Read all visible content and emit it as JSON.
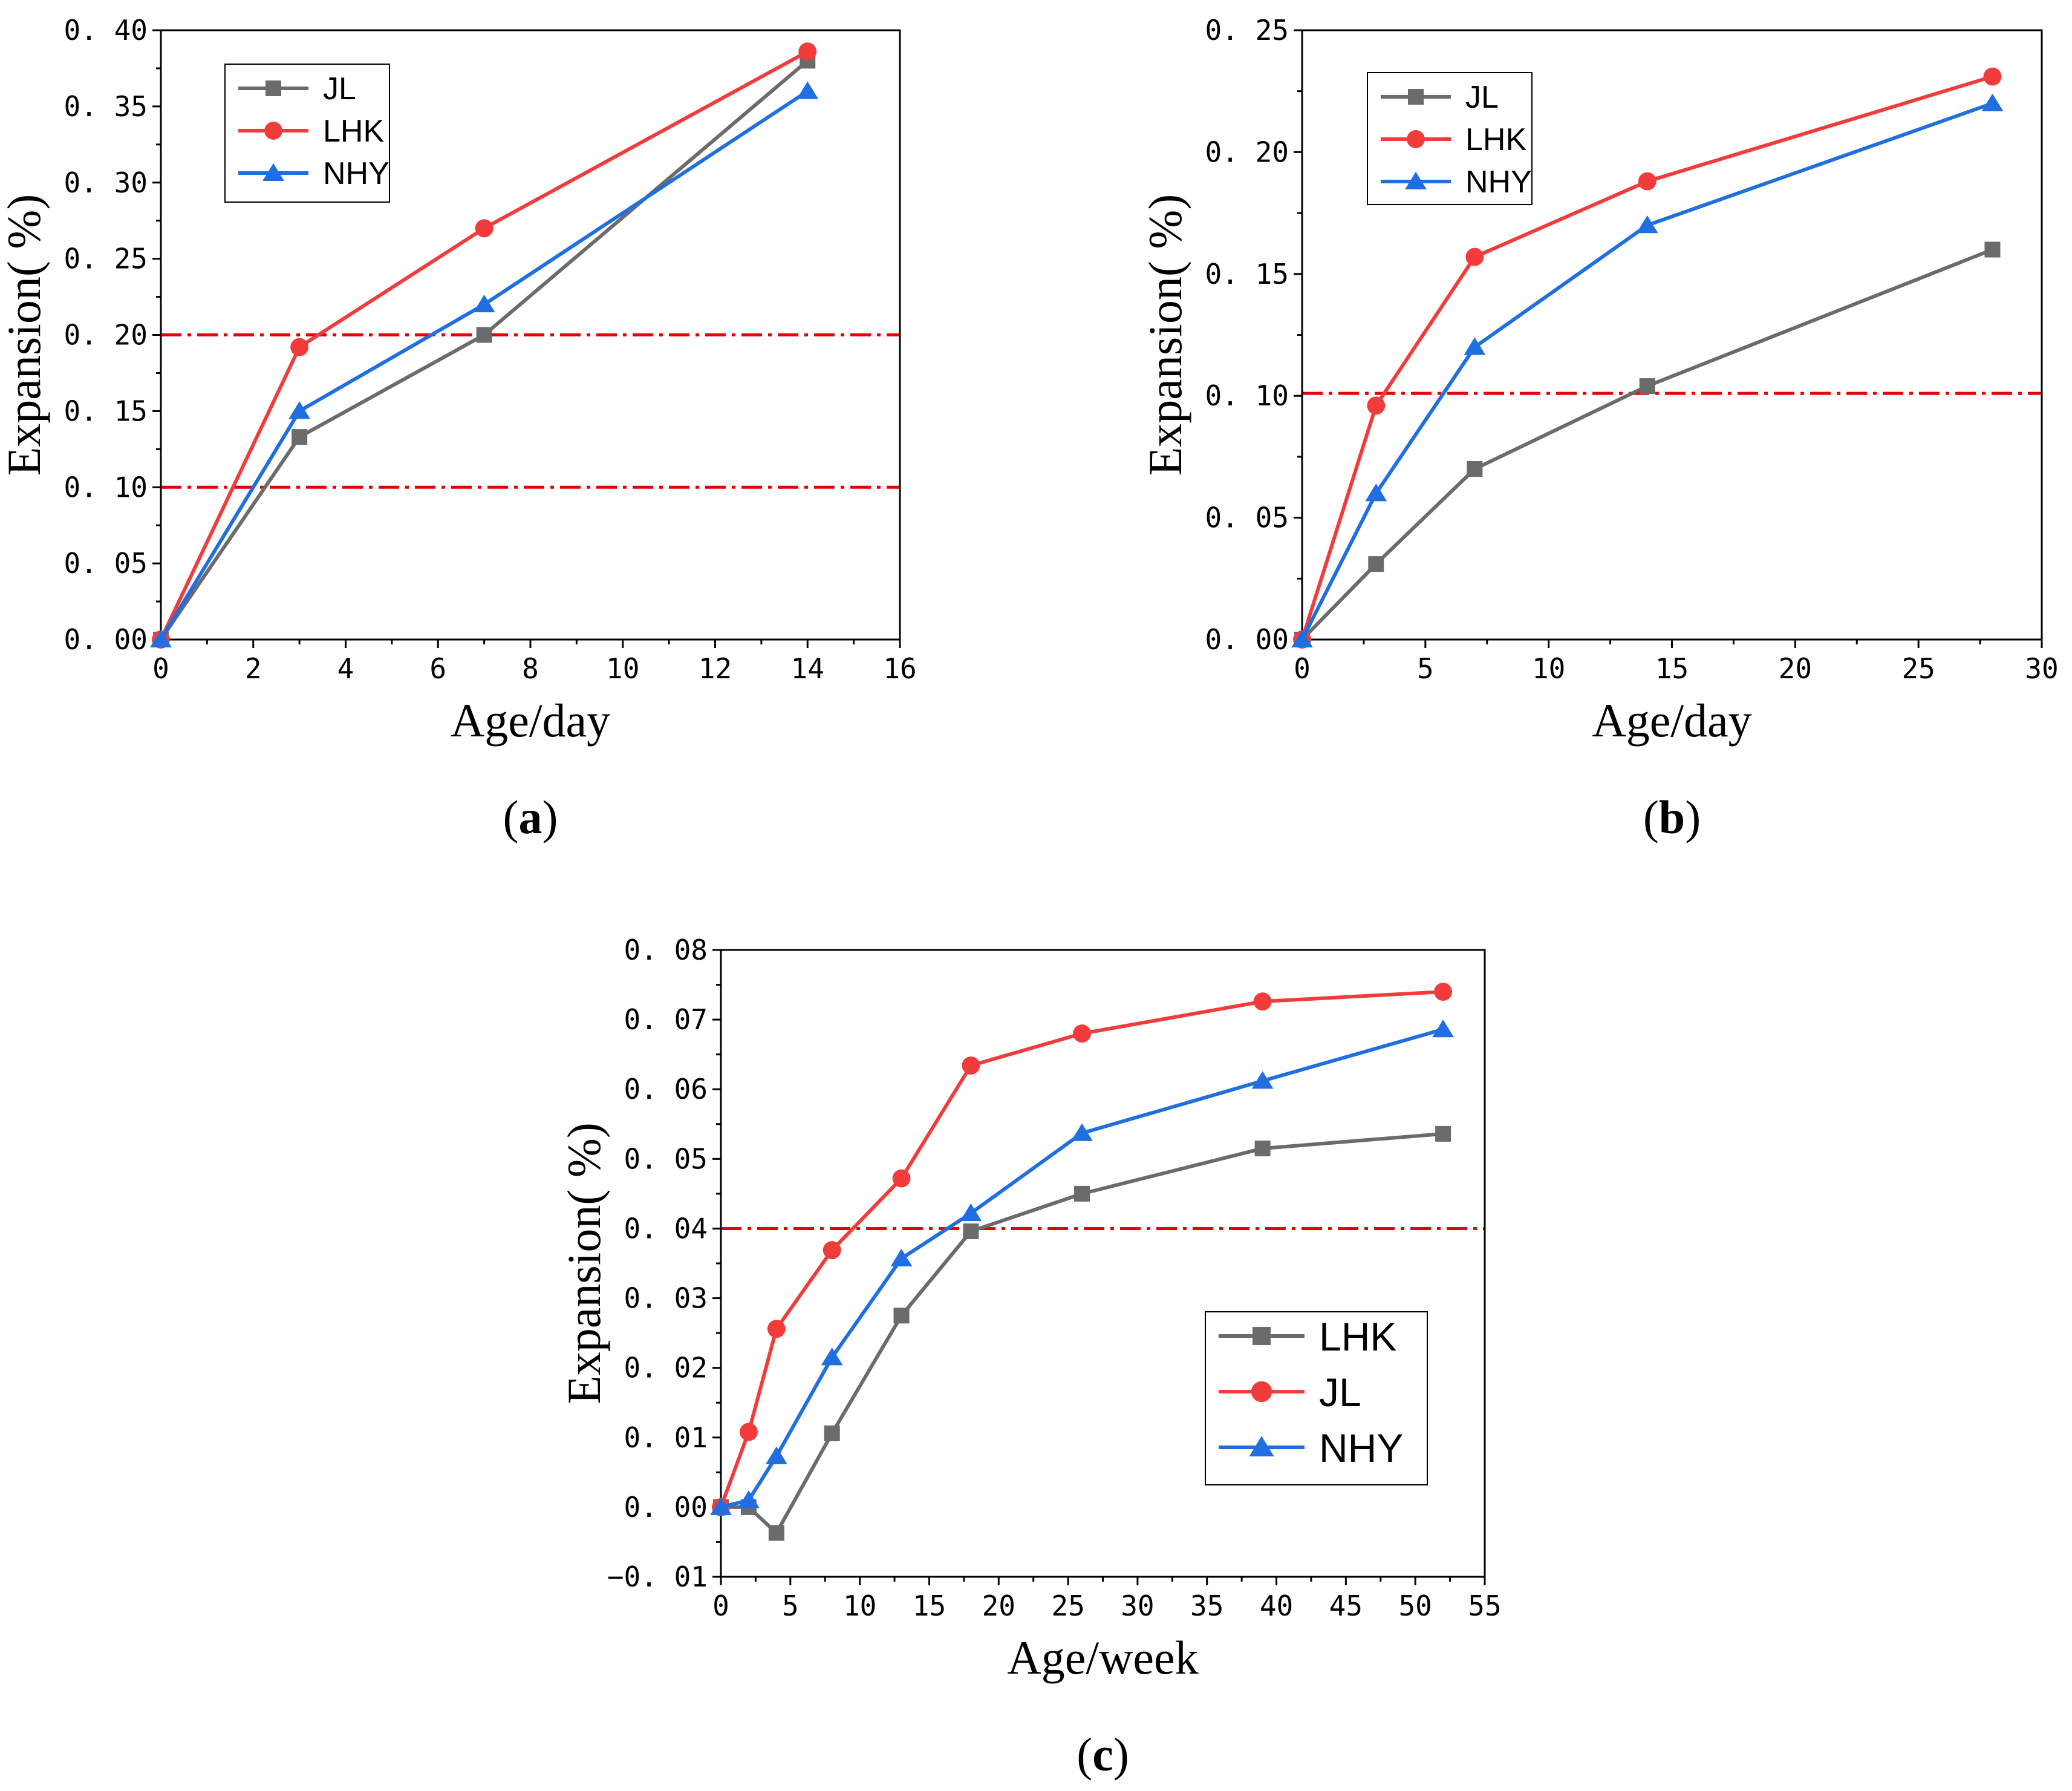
{
  "colors": {
    "gray": "#6b6b6b",
    "red": "#f23c3c",
    "blue": "#1f6fe0",
    "refline": "#e60000",
    "axis": "#000000"
  },
  "chart_data": [
    {
      "id": "a",
      "type": "line",
      "caption": "a",
      "xlabel": "Age/day",
      "ylabel": "Expansion(  %)",
      "xlim": [
        0,
        16
      ],
      "ylim": [
        0,
        0.4
      ],
      "xticks": [
        "0",
        "2",
        "4",
        "6",
        "8",
        "10",
        "12",
        "14",
        "16"
      ],
      "yticks": [
        "0. 00",
        "0. 05",
        "0. 10",
        "0. 15",
        "0. 20",
        "0. 25",
        "0. 30",
        "0. 35",
        "0. 40"
      ],
      "reference_lines": [
        0.1,
        0.2
      ],
      "legend_position": "top-left",
      "series": [
        {
          "name": "JL",
          "color": "#6b6b6b",
          "marker": "square",
          "x": [
            0,
            3,
            7,
            14
          ],
          "y": [
            0.0,
            0.133,
            0.2,
            0.38
          ]
        },
        {
          "name": "LHK",
          "color": "#f23c3c",
          "marker": "circle",
          "x": [
            0,
            3,
            7,
            14
          ],
          "y": [
            0.0,
            0.192,
            0.27,
            0.386
          ]
        },
        {
          "name": "NHY",
          "color": "#1f6fe0",
          "marker": "triangle",
          "x": [
            0,
            3,
            7,
            14
          ],
          "y": [
            0.0,
            0.15,
            0.22,
            0.36
          ]
        }
      ]
    },
    {
      "id": "b",
      "type": "line",
      "caption": "b",
      "xlabel": "Age/day",
      "ylabel": "Expansion(  %)",
      "xlim": [
        0,
        30
      ],
      "ylim": [
        0,
        0.25
      ],
      "xticks": [
        "0",
        "5",
        "10",
        "15",
        "20",
        "25",
        "30"
      ],
      "yticks": [
        "0. 00",
        "0. 05",
        "0. 10",
        "0. 15",
        "0. 20",
        "0. 25"
      ],
      "reference_lines": [
        0.101
      ],
      "legend_position": "top-left",
      "series": [
        {
          "name": "JL",
          "color": "#6b6b6b",
          "marker": "square",
          "x": [
            0,
            3,
            7,
            14,
            28
          ],
          "y": [
            0.0,
            0.031,
            0.07,
            0.104,
            0.16
          ]
        },
        {
          "name": "LHK",
          "color": "#f23c3c",
          "marker": "circle",
          "x": [
            0,
            3,
            7,
            14,
            28
          ],
          "y": [
            0.0,
            0.096,
            0.157,
            0.188,
            0.231
          ]
        },
        {
          "name": "NHY",
          "color": "#1f6fe0",
          "marker": "triangle",
          "x": [
            0,
            3,
            7,
            14,
            28
          ],
          "y": [
            0.0,
            0.06,
            0.12,
            0.17,
            0.22
          ]
        }
      ]
    },
    {
      "id": "c",
      "type": "line",
      "caption": "c",
      "xlabel": "Age/week",
      "ylabel": "Expansion(  %)",
      "xlim": [
        0,
        55
      ],
      "ylim": [
        -0.01,
        0.08
      ],
      "xticks": [
        "0",
        "5",
        "10",
        "15",
        "20",
        "25",
        "30",
        "35",
        "40",
        "45",
        "50",
        "55"
      ],
      "yticks": [
        "−0. 01",
        "0. 00",
        "0. 01",
        "0. 02",
        "0. 03",
        "0. 04",
        "0. 05",
        "0. 06",
        "0. 07",
        "0. 08"
      ],
      "reference_lines": [
        0.04
      ],
      "legend_position": "bottom-right",
      "series": [
        {
          "name": "LHK",
          "color": "#6b6b6b",
          "marker": "square",
          "x": [
            0,
            2,
            4,
            8,
            13,
            18,
            26,
            39,
            52
          ],
          "y": [
            0.0,
            0.0,
            -0.0037,
            0.0106,
            0.0275,
            0.0396,
            0.045,
            0.0515,
            0.0536
          ]
        },
        {
          "name": "JL",
          "color": "#f23c3c",
          "marker": "circle",
          "x": [
            0,
            2,
            4,
            8,
            13,
            18,
            26,
            39,
            52
          ],
          "y": [
            0.0,
            0.0108,
            0.0256,
            0.0369,
            0.0472,
            0.0634,
            0.068,
            0.0726,
            0.074
          ]
        },
        {
          "name": "NHY",
          "color": "#1f6fe0",
          "marker": "triangle",
          "x": [
            0,
            2,
            4,
            8,
            13,
            18,
            26,
            39,
            52
          ],
          "y": [
            0.0,
            0.001,
            0.0073,
            0.0215,
            0.0357,
            0.0422,
            0.0537,
            0.0612,
            0.0686
          ]
        }
      ]
    }
  ]
}
